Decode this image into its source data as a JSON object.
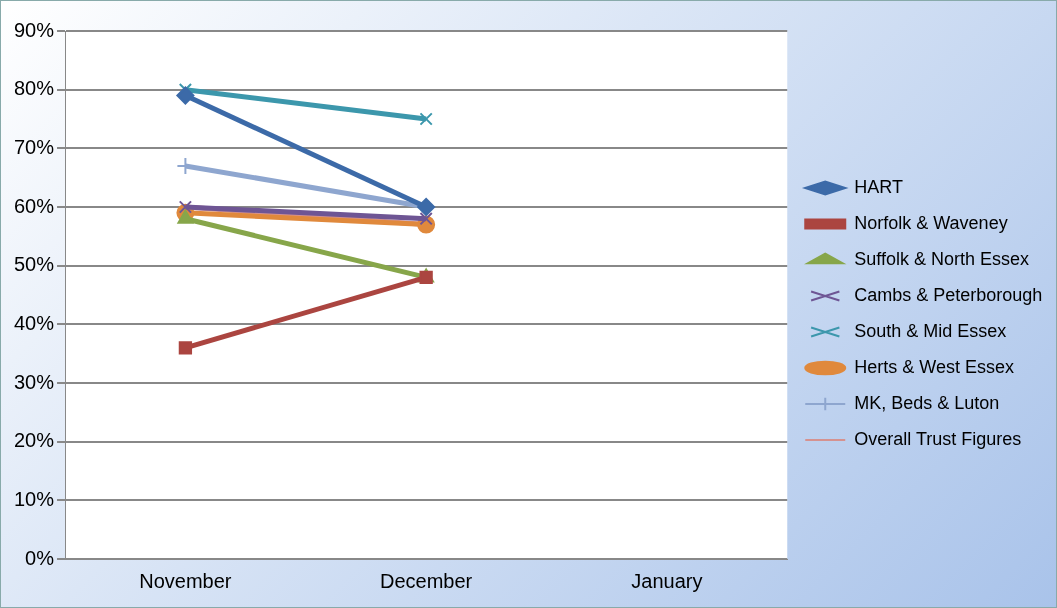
{
  "chart_data": {
    "type": "line",
    "categories": [
      "November",
      "December",
      "January"
    ],
    "ylim": [
      0,
      0.9
    ],
    "yticks": [
      {
        "value": 0,
        "label": "0%"
      },
      {
        "value": 0.1,
        "label": "10%"
      },
      {
        "value": 0.2,
        "label": "20%"
      },
      {
        "value": 0.3,
        "label": "30%"
      },
      {
        "value": 0.4,
        "label": "40%"
      },
      {
        "value": 0.5,
        "label": "50%"
      },
      {
        "value": 0.6,
        "label": "60%"
      },
      {
        "value": 0.7,
        "label": "70%"
      },
      {
        "value": 0.8,
        "label": "80%"
      },
      {
        "value": 0.9,
        "label": "90%"
      }
    ],
    "grid": "y",
    "legend": "right",
    "line_style": "solid",
    "series": [
      {
        "name": "HART",
        "color": "#3c6aa8",
        "marker": "diamond",
        "values": [
          0.79,
          0.6,
          null
        ]
      },
      {
        "name": "Norfolk & Waveney",
        "color": "#ab4540",
        "marker": "square",
        "values": [
          0.36,
          0.48,
          null
        ]
      },
      {
        "name": "Suffolk & North Essex",
        "color": "#87a64a",
        "marker": "triangle",
        "values": [
          0.58,
          0.48,
          null
        ]
      },
      {
        "name": "Cambs & Peterborough",
        "color": "#6e5594",
        "marker": "cross",
        "values": [
          0.6,
          0.58,
          null
        ]
      },
      {
        "name": "South & Mid Essex",
        "color": "#3c97ac",
        "marker": "cross",
        "values": [
          0.8,
          0.75,
          null
        ]
      },
      {
        "name": "Herts & West Essex",
        "color": "#e0893c",
        "marker": "circle",
        "values": [
          0.59,
          0.57,
          null
        ]
      },
      {
        "name": "MK, Beds & Luton",
        "color": "#8ea6cf",
        "marker": "plus",
        "values": [
          0.67,
          0.6,
          null
        ]
      },
      {
        "name": "Overall Trust Figures",
        "color": "#d59290",
        "marker": "none",
        "values": [
          0.6,
          0.57,
          null
        ]
      }
    ]
  }
}
